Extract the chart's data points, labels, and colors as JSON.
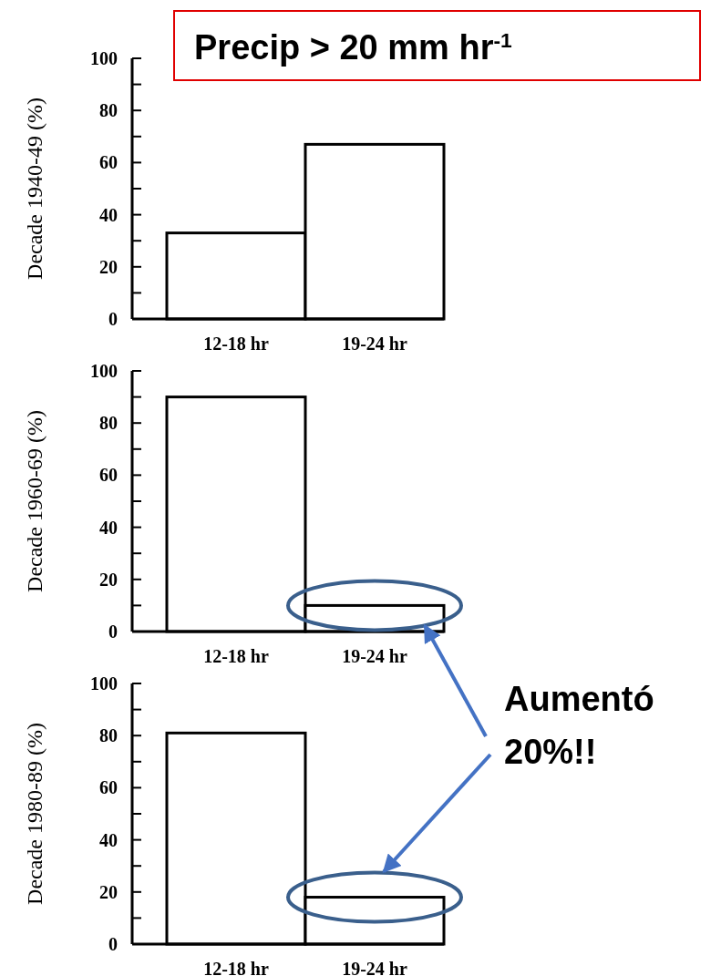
{
  "chart_data": [
    {
      "type": "bar",
      "title": "Precip > 20 mm hr$^{-1}$",
      "ylabel": "Decade 1940-49 (%)",
      "categories": [
        "12-18 hr",
        "19-24 hr"
      ],
      "values": [
        33,
        67
      ],
      "color": "#ffffff",
      "ylim": [
        0,
        100
      ],
      "yticks": [
        0,
        {
          "value": 10,
          "label": null
        },
        20,
        {
          "value": 30,
          "label": null
        },
        40,
        {
          "value": 50,
          "label": null
        },
        60,
        {
          "value": 70,
          "label": null
        },
        80,
        {
          "value": 90,
          "label": null
        },
        100
      ]
    },
    {
      "type": "bar",
      "ylabel": "Decade 1960-69 (%)",
      "categories": [
        "12-18 hr",
        "19-24 hr"
      ],
      "values": [
        90,
        10
      ],
      "color": "#ffffff",
      "ylim": [
        0,
        100
      ],
      "yticks": [
        0,
        {
          "value": 10,
          "label": null
        },
        20,
        {
          "value": 30,
          "label": null
        },
        40,
        {
          "value": 50,
          "label": null
        },
        60,
        {
          "value": 70,
          "label": null
        },
        80,
        {
          "value": 90,
          "label": null
        },
        100
      ]
    },
    {
      "type": "bar",
      "ylabel": "Decade 1980-89 (%)",
      "categories": [
        "12-18 hr",
        "19-24 hr"
      ],
      "values": [
        81,
        18
      ],
      "color": "#ffffff",
      "ylim": [
        0,
        100
      ],
      "yticks": [
        0,
        {
          "value": 10,
          "label": null
        },
        20,
        {
          "value": 30,
          "label": null
        },
        40,
        {
          "value": 50,
          "label": null
        },
        60,
        {
          "value": 70,
          "label": null
        },
        80,
        {
          "value": 90,
          "label": null
        },
        100
      ],
      "annotations": [
        "Aumentó 20%!!"
      ]
    }
  ]
}
